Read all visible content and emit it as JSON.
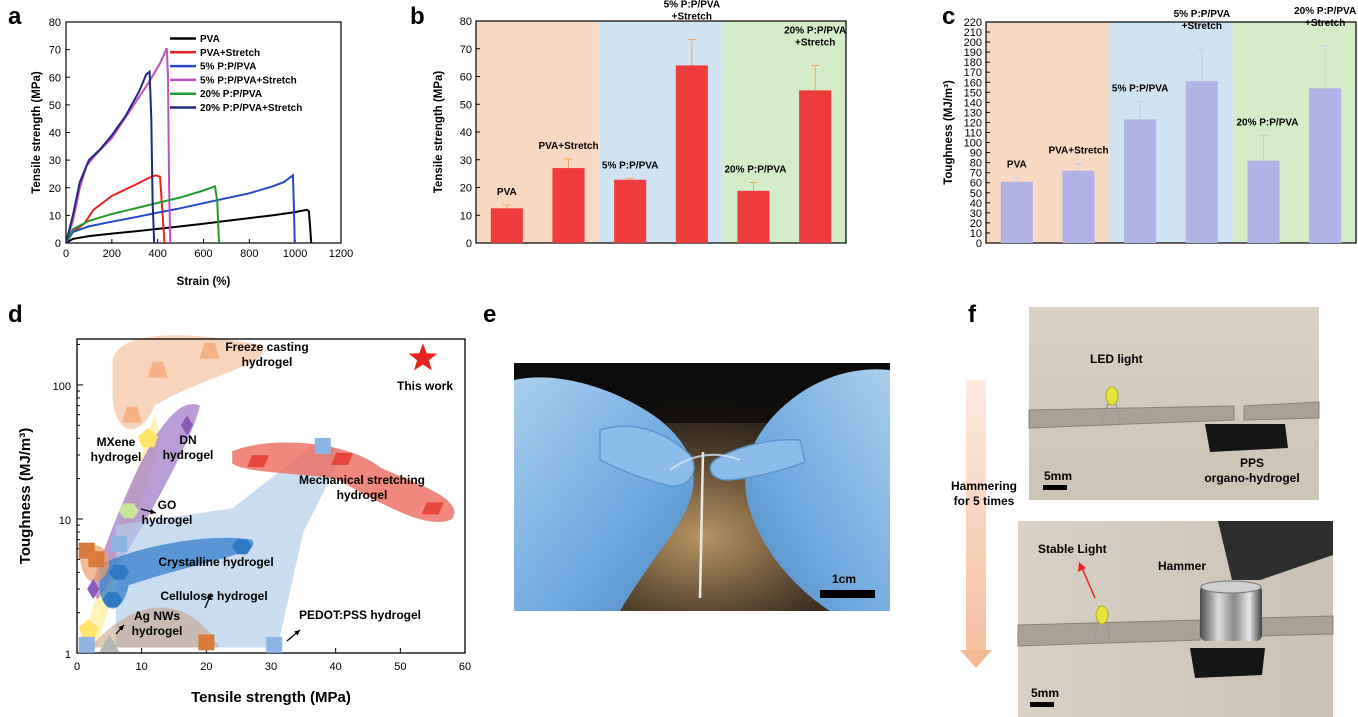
{
  "panels": {
    "a": "a",
    "b": "b",
    "c": "c",
    "d": "d",
    "e": "e",
    "f": "f"
  },
  "chart_data": [
    {
      "panel": "a",
      "type": "line",
      "xlabel": "Strain (%)",
      "ylabel": "Tensile strength (MPa)",
      "xlim": [
        0,
        1200
      ],
      "ylim": [
        0,
        80
      ],
      "xticks": [
        0,
        200,
        400,
        600,
        800,
        1000,
        1200
      ],
      "yticks": [
        0,
        10,
        20,
        30,
        40,
        50,
        60,
        70,
        80
      ],
      "legend": "top-left",
      "series": [
        {
          "name": "PVA",
          "color": "#000000",
          "x": [
            0,
            30,
            100,
            200,
            300,
            400,
            500,
            600,
            700,
            800,
            900,
            1000,
            1050,
            1060,
            1065,
            1070
          ],
          "y": [
            0,
            1.5,
            2.5,
            3.4,
            4.2,
            5.1,
            6.0,
            7.0,
            8.0,
            9.0,
            10.0,
            11.2,
            12.0,
            11.5,
            6,
            0
          ]
        },
        {
          "name": "PVA+Stretch",
          "color": "#e8231f",
          "x": [
            0,
            30,
            80,
            120,
            200,
            300,
            360,
            390,
            410,
            420,
            430
          ],
          "y": [
            0,
            4,
            7,
            12,
            17,
            21,
            23.5,
            24.5,
            24,
            12,
            0
          ]
        },
        {
          "name": "5% P:P/PVA",
          "color": "#2747c9",
          "x": [
            0,
            30,
            100,
            200,
            300,
            400,
            500,
            600,
            700,
            800,
            900,
            950,
            990,
            995,
            998
          ],
          "y": [
            0,
            4,
            6,
            7.7,
            9.3,
            11,
            12.6,
            14.4,
            16.2,
            18,
            20.5,
            22,
            24.5,
            12,
            0
          ]
        },
        {
          "name": "5% P:P/PVA+Stretch",
          "color": "#c14fc1",
          "x": [
            0,
            30,
            60,
            90,
            130,
            200,
            280,
            360,
            410,
            440,
            445,
            450,
            455
          ],
          "y": [
            0,
            8,
            20,
            28,
            32,
            38,
            48,
            58,
            65,
            70.5,
            60,
            20,
            0
          ]
        },
        {
          "name": "20% P:P/PVA",
          "color": "#239a30",
          "x": [
            0,
            30,
            100,
            200,
            300,
            400,
            500,
            600,
            650,
            660,
            665,
            668
          ],
          "y": [
            0,
            5,
            8,
            10.5,
            12.5,
            14.5,
            16.5,
            19,
            20.5,
            15,
            5,
            0
          ]
        },
        {
          "name": "20% P:P/PVA+Stretch",
          "color": "#1f2a7d",
          "x": [
            0,
            30,
            60,
            100,
            150,
            200,
            260,
            320,
            350,
            365,
            372,
            378,
            385
          ],
          "y": [
            0,
            10,
            22,
            30,
            34,
            39,
            46,
            55,
            61,
            62,
            45,
            15,
            0
          ]
        }
      ]
    },
    {
      "panel": "b",
      "type": "bar",
      "ylabel": "Tensile strength (MPa)",
      "ylim": [
        0,
        80
      ],
      "yticks": [
        0,
        10,
        20,
        30,
        40,
        50,
        60,
        70,
        80
      ],
      "bar_color": "#ee3b3b",
      "error_color": "#f2a35c",
      "bands": [
        "#fad9c3",
        "#cfe3f2",
        "#d5ecc9"
      ],
      "categories": [
        "PVA",
        "PVA+Stretch",
        "5% P:P/PVA",
        "5% P:P/PVA\n+Stretch",
        "20% P:P/PVA",
        "20% P:P/PVA\n+Stretch"
      ],
      "values": [
        12.5,
        27,
        22.8,
        64,
        18.8,
        55
      ],
      "errors": [
        1.2,
        3.3,
        0.5,
        9.3,
        3,
        9
      ]
    },
    {
      "panel": "c",
      "type": "bar",
      "ylabel": "Toughness (MJ/m³)",
      "ylim": [
        0,
        220
      ],
      "yticks": [
        0,
        10,
        20,
        30,
        40,
        50,
        60,
        70,
        80,
        90,
        100,
        110,
        120,
        130,
        140,
        150,
        160,
        170,
        180,
        190,
        200,
        210,
        220
      ],
      "bar_color": "#b1b2e6",
      "error_color": "#c9cbe6",
      "bands": [
        "#fad9c3",
        "#cfe3f2",
        "#d5ecc9"
      ],
      "categories": [
        "PVA",
        "PVA+Stretch",
        "5% P:P/PVA",
        "5% P:P/PVA\n+Stretch",
        "20% P:P/PVA",
        "20% P:P/PVA\n+Stretch"
      ],
      "values": [
        61,
        72,
        123,
        161,
        82,
        154
      ],
      "errors": [
        4,
        7,
        18,
        32,
        25,
        42
      ]
    },
    {
      "panel": "d",
      "type": "scatter",
      "xlabel": "Tensile strength (MPa)",
      "ylabel": "Toughness (MJ/m³)",
      "xlim": [
        0,
        60
      ],
      "ylim": [
        1,
        220
      ],
      "yscale": "log",
      "xticks": [
        0,
        10,
        20,
        30,
        40,
        50,
        60
      ],
      "ytick_labels": [
        "1",
        "10",
        "100"
      ],
      "groups": [
        {
          "label": "Freeze casting\nhydrogel",
          "color": "#f4b183",
          "marker": "trapezoid",
          "points": [
            [
              8.5,
              60
            ],
            [
              12.5,
              130
            ],
            [
              20.5,
              180
            ]
          ]
        },
        {
          "label": "MXene\nhydrogel",
          "color": "#ffe36b",
          "marker": "pentagon",
          "points": [
            [
              11,
              40
            ],
            [
              1.8,
              1.5
            ]
          ]
        },
        {
          "label": "DN\nhydrogel",
          "color": "#8a5ab8",
          "marker": "diamond",
          "points": [
            [
              17,
              50
            ],
            [
              2.5,
              3
            ]
          ]
        },
        {
          "label": "Mechanical stretching\nhydrogel",
          "color": "#e5473b",
          "marker": "rhombus",
          "points": [
            [
              28,
              27
            ],
            [
              41,
              28
            ],
            [
              55,
              12
            ]
          ]
        },
        {
          "label": "GO\nhydrogel",
          "color": "#c7e59b",
          "marker": "hexagon",
          "points": [
            [
              8,
              11.5
            ]
          ]
        },
        {
          "label": "Crystalline hydrogel",
          "color": "#2f78c4",
          "marker": "hexagon",
          "points": [
            [
              6.5,
              4
            ],
            [
              25.5,
              6.2
            ],
            [
              5.5,
              2.5
            ]
          ]
        },
        {
          "label": "Cellulose hydrogel",
          "color": "#d97b3a",
          "marker": "square",
          "points": [
            [
              1.5,
              5.8
            ],
            [
              3,
              5
            ],
            [
              20,
              1.2
            ]
          ]
        },
        {
          "label": "Ag NWs\nhydrogel",
          "color": "#b5b5b5",
          "marker": "triangle",
          "points": [
            [
              5,
              1.15
            ]
          ]
        },
        {
          "label": "PEDOT:PSS hydrogel",
          "color": "#8eb4e3",
          "marker": "square",
          "points": [
            [
              38,
              35
            ],
            [
              6.5,
              6.5
            ],
            [
              30.5,
              1.15
            ],
            [
              1.5,
              1.15
            ]
          ]
        },
        {
          "label": "This work",
          "color": "#e8231f",
          "marker": "star",
          "points": [
            [
              53.5,
              158
            ]
          ]
        }
      ]
    }
  ],
  "panel_e": {
    "scale_bar": "1cm"
  },
  "panel_f": {
    "top": {
      "led": "LED light",
      "material": "PPS\norgano-hydrogel",
      "scale": "5mm"
    },
    "arrow": "Hammering\nfor  5 times",
    "bottom": {
      "stable": "Stable Light",
      "hammer": "Hammer",
      "scale": "5mm"
    }
  },
  "colors": {
    "bar_red": "#ee3b3b",
    "bar_purple": "#b1b2e6",
    "band_peach": "#fad9c3",
    "band_blue": "#cfe3f2",
    "band_green": "#d5ecc9"
  }
}
